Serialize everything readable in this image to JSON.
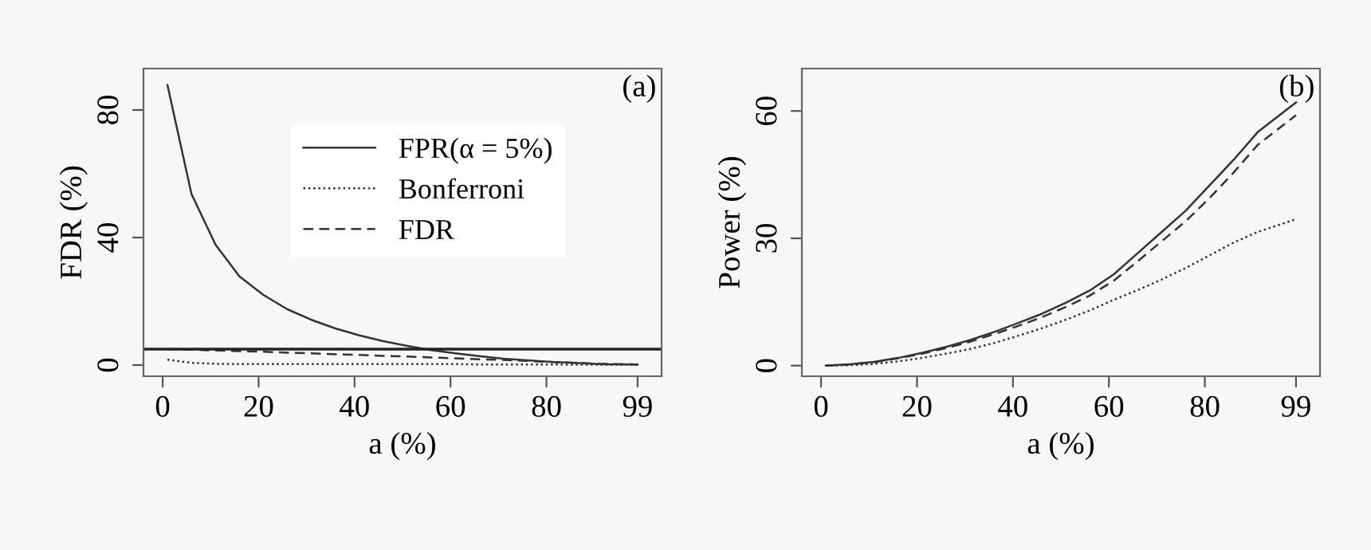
{
  "chart_data": [
    {
      "type": "line",
      "xlabel": "a (%)",
      "ylabel": "FDR (%)",
      "annotations": [
        "(a)"
      ],
      "legend": "top right",
      "grid": false,
      "marker": "none",
      "x": [
        1,
        6,
        11,
        16,
        21,
        26,
        31,
        36,
        41,
        46,
        51,
        56,
        61,
        66,
        71,
        76,
        81,
        86,
        91,
        99
      ],
      "xlim": [
        -4,
        104
      ],
      "ylim": [
        -3.5,
        93
      ],
      "xticks": [
        0,
        20,
        40,
        60,
        80,
        99
      ],
      "yticks": [
        0,
        40,
        80
      ],
      "ref_lines": [
        {
          "axis": "y",
          "value": 5,
          "color": "#222222",
          "line_style": "solid"
        }
      ],
      "series": [
        {
          "name": "FPR(α = 5%)",
          "color": "#333333",
          "line_style": "solid",
          "values": [
            87.8,
            53.7,
            37.8,
            27.8,
            22,
            17.5,
            14.2,
            11.5,
            9.3,
            7.5,
            6,
            4.7,
            3.7,
            2.8,
            2,
            1.5,
            1,
            0.7,
            0.3,
            0.2
          ]
        },
        {
          "name": "Bonferroni",
          "color": "#333333",
          "line_style": "dotted",
          "values": [
            1.7,
            0.7,
            0.4,
            0.3,
            0.3,
            0.3,
            0.3,
            0.3,
            0.3,
            0.3,
            0.3,
            0.3,
            0.3,
            0.2,
            0.2,
            0.2,
            0.2,
            0.1,
            0.1,
            0.1
          ]
        },
        {
          "name": "FDR",
          "color": "#333333",
          "line_style": "dashed",
          "values": [
            5,
            4.8,
            4.6,
            4.4,
            4.2,
            3.9,
            3.7,
            3.4,
            3.2,
            2.9,
            2.7,
            2.4,
            2.1,
            1.8,
            1.6,
            1.3,
            1,
            0.7,
            0.4,
            0.2
          ]
        }
      ]
    },
    {
      "type": "line",
      "xlabel": "a (%)",
      "ylabel": "Power (%)",
      "annotations": [
        "(b)"
      ],
      "grid": false,
      "marker": "none",
      "x": [
        1,
        6,
        11,
        16,
        21,
        26,
        31,
        36,
        41,
        46,
        51,
        56,
        61,
        66,
        71,
        76,
        81,
        86,
        91,
        99
      ],
      "xlim": [
        -4,
        104
      ],
      "ylim": [
        -2.5,
        70
      ],
      "xticks": [
        0,
        20,
        40,
        60,
        80,
        99
      ],
      "yticks": [
        0,
        30,
        60
      ],
      "series": [
        {
          "color": "#333333",
          "line_style": "solid",
          "values": [
            0,
            0.3,
            0.9,
            1.8,
            3,
            4.4,
            6,
            7.9,
            10,
            12.2,
            14.8,
            17.7,
            21.5,
            26.5,
            31.5,
            36.5,
            42.5,
            48.5,
            55,
            62
          ]
        },
        {
          "color": "#333333",
          "line_style": "dotted",
          "values": [
            0,
            0.1,
            0.4,
            1,
            1.8,
            2.8,
            3.9,
            5.3,
            7,
            8.8,
            10.8,
            13,
            15.5,
            17.8,
            20.3,
            23,
            26,
            29,
            31.5,
            34.5
          ]
        },
        {
          "color": "#333333",
          "line_style": "dashed",
          "values": [
            0,
            0.3,
            0.8,
            1.7,
            2.8,
            4.1,
            5.6,
            7.4,
            9.3,
            11.4,
            13.8,
            16.5,
            20,
            24.6,
            29.3,
            34,
            39.5,
            45.5,
            52,
            59
          ]
        }
      ]
    }
  ]
}
